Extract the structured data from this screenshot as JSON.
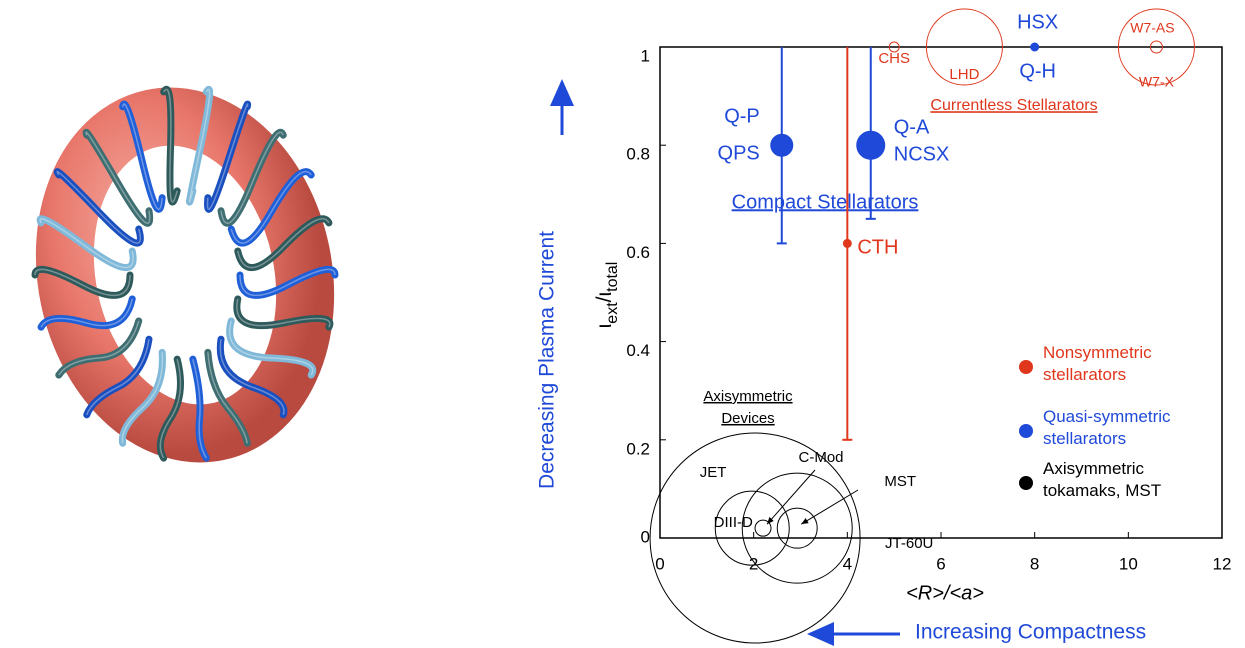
{
  "chart_data": {
    "type": "scatter",
    "xlabel": "<R>/<a>",
    "ylabel": [
      "ι",
      "ext",
      "/ι",
      "total"
    ],
    "xlim": [
      0,
      12
    ],
    "xticks": [
      0,
      2,
      4,
      6,
      8,
      10,
      12
    ],
    "ylim": [
      0,
      1
    ],
    "yticks": [
      0,
      0.2,
      0.4,
      0.6,
      0.8,
      1
    ],
    "series": [
      {
        "name": "Nonsymmetric stellarators",
        "color": "#e0361c",
        "x": [
          4,
          5,
          6.5,
          10.6,
          10.6
        ],
        "values": [
          0.6,
          1,
          1,
          1,
          1
        ],
        "sizes": [
          4,
          5,
          38,
          6,
          38
        ],
        "filled": [
          true,
          false,
          false,
          false,
          false
        ],
        "error_low": [
          0.2,
          null,
          null,
          null,
          null
        ],
        "error_high": [
          1,
          null,
          null,
          null,
          null
        ],
        "labels": [
          [
            "CTH"
          ],
          [
            "CHS"
          ],
          [
            "LHD"
          ],
          [
            "W7-AS"
          ],
          [
            "W7-X"
          ]
        ]
      },
      {
        "name": "Quasi-symmetric stellarators",
        "color": "#1f49d8",
        "x": [
          2.6,
          4.5,
          8
        ],
        "values": [
          0.8,
          0.8,
          1
        ],
        "sizes": [
          11,
          14,
          4
        ],
        "filled": [
          true,
          true,
          true
        ],
        "error_low": [
          0.6,
          0.65,
          null
        ],
        "error_high": [
          1,
          1,
          null
        ],
        "labels": [
          [
            "Q-P",
            "QPS"
          ],
          [
            "Q-A",
            "NCSX"
          ],
          [
            "HSX",
            "Q-H"
          ]
        ]
      },
      {
        "name": "Axisymmetric tokamaks, MST",
        "color": "#000000",
        "x": [
          2.03,
          1.97,
          2.2,
          2.93,
          2.93
        ],
        "values": [
          0,
          0.02,
          0.02,
          0.02,
          0.02
        ],
        "sizes": [
          105,
          37,
          8,
          20,
          55
        ],
        "filled": [
          false,
          false,
          false,
          false,
          false
        ],
        "error_low": [
          null,
          null,
          null,
          null,
          null
        ],
        "error_high": [
          null,
          null,
          null,
          null,
          null
        ],
        "labels": [
          [
            "JET"
          ],
          [
            "DIII-D"
          ],
          [
            "C-Mod"
          ],
          [
            "MST"
          ],
          [
            "JT-60U"
          ]
        ]
      }
    ],
    "annotations": {
      "compact": "Compact Stellarators",
      "currentless": "Currentless Stellarators",
      "axisymmetric": [
        "Axisymmetric",
        "Devices"
      ],
      "current_arrow": "Decreasing Plasma Current",
      "compactness_arrow": "Increasing Compactness"
    }
  }
}
